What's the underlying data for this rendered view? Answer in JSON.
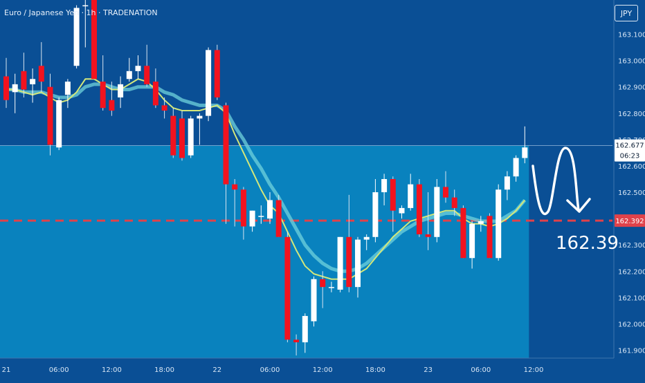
{
  "header": {
    "symbol_title": "Euro / Japanese Yen · 1h · TRADENATION",
    "currency_button": "JPY"
  },
  "price_scale": {
    "last_price_label": "162.677",
    "countdown_label": "06:23",
    "target_price_label": "162.392"
  },
  "annotation": {
    "target_text": "162.39"
  },
  "colors": {
    "background": "#0a4f95",
    "area_fill": "#0985c0",
    "bull_candle": "#ffffff",
    "bear_candle": "#f2131f",
    "ma_fast": "#d4e87a",
    "ma_slow": "#6fd1dc",
    "target_line": "#e0424a"
  },
  "chart_data": {
    "type": "candlestick",
    "y_ticks": [
      "163.100",
      "163.000",
      "162.900",
      "162.800",
      "162.700",
      "162.600",
      "162.500",
      "162.400",
      "162.300",
      "162.200",
      "162.100",
      "162.000",
      "161.900"
    ],
    "ylim": [
      161.87,
      163.23
    ],
    "x_ticks": [
      {
        "i": 0,
        "label": "21"
      },
      {
        "i": 6,
        "label": "06:00"
      },
      {
        "i": 12,
        "label": "12:00"
      },
      {
        "i": 18,
        "label": "18:00"
      },
      {
        "i": 24,
        "label": "22"
      },
      {
        "i": 30,
        "label": "06:00"
      },
      {
        "i": 36,
        "label": "12:00"
      },
      {
        "i": 42,
        "label": "18:00"
      },
      {
        "i": 48,
        "label": "23"
      },
      {
        "i": 54,
        "label": "06:00"
      },
      {
        "i": 60,
        "label": "12:00"
      }
    ],
    "last_price": 162.677,
    "target_level": 162.392,
    "candles": [
      [
        162.94,
        163.01,
        162.82,
        162.85
      ],
      [
        162.88,
        162.95,
        162.8,
        162.91
      ],
      [
        162.96,
        163.03,
        162.86,
        162.89
      ],
      [
        162.91,
        162.97,
        162.84,
        162.93
      ],
      [
        162.98,
        163.07,
        162.88,
        162.92
      ],
      [
        162.9,
        162.95,
        162.64,
        162.68
      ],
      [
        162.67,
        162.86,
        162.66,
        162.85
      ],
      [
        162.87,
        162.93,
        162.82,
        162.92
      ],
      [
        162.98,
        163.21,
        162.97,
        163.2
      ],
      [
        163.21,
        163.28,
        163.05,
        163.21
      ],
      [
        163.23,
        163.26,
        162.93,
        162.93
      ],
      [
        162.92,
        163.02,
        162.81,
        162.82
      ],
      [
        162.85,
        162.92,
        162.79,
        162.81
      ],
      [
        162.86,
        162.94,
        162.82,
        162.91
      ],
      [
        162.93,
        163.01,
        162.92,
        162.96
      ],
      [
        162.96,
        163.02,
        162.93,
        162.98
      ],
      [
        162.98,
        163.06,
        162.9,
        162.91
      ],
      [
        162.92,
        162.97,
        162.82,
        162.83
      ],
      [
        162.83,
        162.86,
        162.78,
        162.81
      ],
      [
        162.79,
        162.82,
        162.63,
        162.64
      ],
      [
        162.78,
        162.81,
        162.62,
        162.63
      ],
      [
        162.64,
        162.79,
        162.63,
        162.78
      ],
      [
        162.78,
        162.8,
        162.68,
        162.79
      ],
      [
        162.79,
        163.05,
        162.77,
        163.04
      ],
      [
        163.04,
        163.06,
        162.85,
        162.86
      ],
      [
        162.83,
        162.84,
        162.38,
        162.53
      ],
      [
        162.53,
        162.55,
        162.37,
        162.51
      ],
      [
        162.51,
        162.52,
        162.32,
        162.37
      ],
      [
        162.37,
        162.43,
        162.35,
        162.43
      ],
      [
        162.41,
        162.45,
        162.38,
        162.41
      ],
      [
        162.4,
        162.5,
        162.38,
        162.47
      ],
      [
        162.47,
        162.49,
        162.33,
        162.33
      ],
      [
        162.33,
        162.35,
        161.93,
        161.94
      ],
      [
        161.94,
        161.96,
        161.88,
        161.93
      ],
      [
        161.93,
        162.04,
        161.89,
        162.03
      ],
      [
        162.01,
        162.18,
        161.99,
        162.17
      ],
      [
        162.17,
        162.2,
        162.06,
        162.14
      ],
      [
        162.14,
        162.16,
        162.12,
        162.14
      ],
      [
        162.13,
        162.33,
        162.12,
        162.33
      ],
      [
        162.33,
        162.49,
        162.12,
        162.14
      ],
      [
        162.14,
        162.33,
        162.1,
        162.32
      ],
      [
        162.32,
        162.34,
        162.28,
        162.33
      ],
      [
        162.33,
        162.55,
        162.31,
        162.5
      ],
      [
        162.5,
        162.57,
        162.45,
        162.55
      ],
      [
        162.55,
        162.56,
        162.35,
        162.43
      ],
      [
        162.42,
        162.45,
        162.4,
        162.44
      ],
      [
        162.44,
        162.57,
        162.43,
        162.53
      ],
      [
        162.53,
        162.55,
        162.33,
        162.34
      ],
      [
        162.34,
        162.5,
        162.28,
        162.33
      ],
      [
        162.33,
        162.55,
        162.31,
        162.52
      ],
      [
        162.52,
        162.58,
        162.46,
        162.48
      ],
      [
        162.48,
        162.51,
        162.41,
        162.44
      ],
      [
        162.44,
        162.45,
        162.25,
        162.25
      ],
      [
        162.25,
        162.39,
        162.21,
        162.38
      ],
      [
        162.38,
        162.41,
        162.35,
        162.39
      ],
      [
        162.41,
        162.42,
        162.25,
        162.25
      ],
      [
        162.25,
        162.53,
        162.24,
        162.51
      ],
      [
        162.51,
        162.58,
        162.47,
        162.56
      ],
      [
        162.56,
        162.64,
        162.54,
        162.63
      ],
      [
        162.63,
        162.75,
        162.61,
        162.67
      ]
    ],
    "ma_fast": [
      162.89,
      162.89,
      162.88,
      162.87,
      162.88,
      162.86,
      162.84,
      162.85,
      162.88,
      162.93,
      162.93,
      162.91,
      162.89,
      162.89,
      162.91,
      162.93,
      162.92,
      162.89,
      162.85,
      162.82,
      162.81,
      162.81,
      162.81,
      162.82,
      162.83,
      162.8,
      162.72,
      162.65,
      162.58,
      162.51,
      162.45,
      162.42,
      162.35,
      162.28,
      162.22,
      162.19,
      162.18,
      162.17,
      162.17,
      162.17,
      162.19,
      162.21,
      162.25,
      162.29,
      162.33,
      162.36,
      162.39,
      162.4,
      162.41,
      162.42,
      162.43,
      162.43,
      162.4,
      162.38,
      162.38,
      162.37,
      162.38,
      162.4,
      162.43,
      162.47
    ],
    "ma_slow": [
      162.89,
      162.89,
      162.88,
      162.88,
      162.88,
      162.87,
      162.86,
      162.86,
      162.87,
      162.9,
      162.91,
      162.91,
      162.9,
      162.89,
      162.89,
      162.9,
      162.9,
      162.9,
      162.88,
      162.87,
      162.85,
      162.84,
      162.83,
      162.83,
      162.83,
      162.81,
      162.75,
      162.7,
      162.64,
      162.59,
      162.53,
      162.48,
      162.42,
      162.36,
      162.3,
      162.26,
      162.23,
      162.21,
      162.2,
      162.2,
      162.21,
      162.23,
      162.26,
      162.29,
      162.32,
      162.35,
      162.37,
      162.39,
      162.4,
      162.41,
      162.42,
      162.42,
      162.41,
      162.4,
      162.39,
      162.39,
      162.39,
      162.41,
      162.43,
      162.47
    ]
  }
}
